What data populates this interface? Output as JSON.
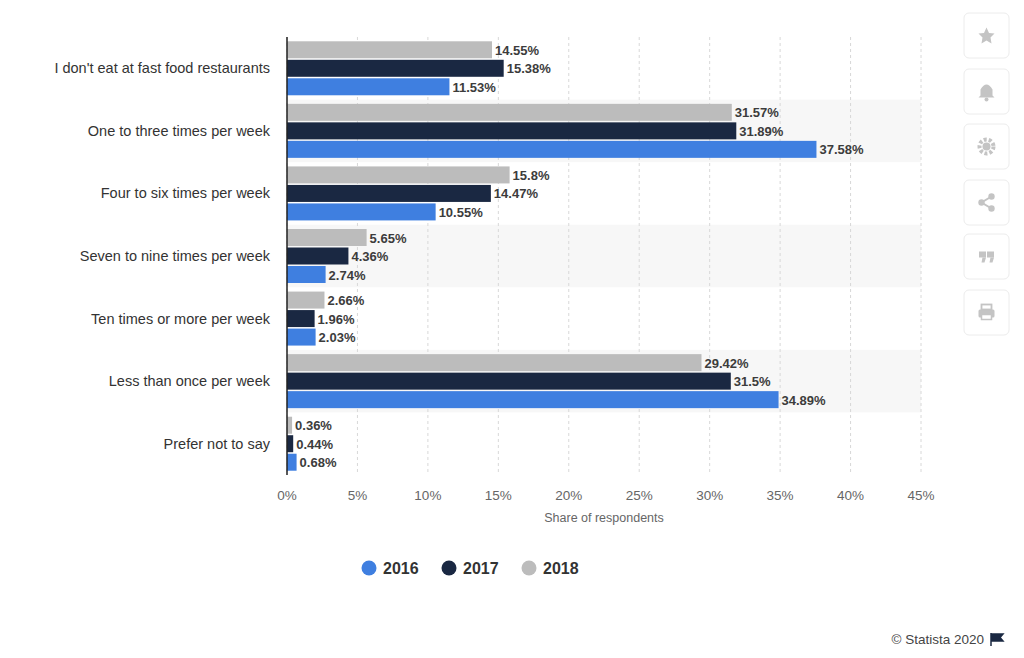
{
  "chart_data": {
    "type": "bar",
    "orientation": "horizontal",
    "categories": [
      "I don't eat at fast food restaurants",
      "One to three times per week",
      "Four to six times per week",
      "Seven to nine times per week",
      "Ten times or more per week",
      "Less than once per week",
      "Prefer not to say"
    ],
    "series": [
      {
        "name": "2016",
        "color": "#3f7fe0",
        "values": [
          11.53,
          37.58,
          10.55,
          2.74,
          2.03,
          34.89,
          0.68
        ],
        "value_labels": [
          "11.53%",
          "37.58%",
          "10.55%",
          "2.74%",
          "2.03%",
          "34.89%",
          "0.68%"
        ]
      },
      {
        "name": "2017",
        "color": "#1a2842",
        "values": [
          15.38,
          31.89,
          14.47,
          4.36,
          1.96,
          31.5,
          0.44
        ],
        "value_labels": [
          "15.38%",
          "31.89%",
          "14.47%",
          "4.36%",
          "1.96%",
          "31.5%",
          "0.44%"
        ]
      },
      {
        "name": "2018",
        "color": "#bcbcbc",
        "values": [
          14.55,
          31.57,
          15.8,
          5.65,
          2.66,
          29.42,
          0.36
        ],
        "value_labels": [
          "14.55%",
          "31.57%",
          "15.8%",
          "5.65%",
          "2.66%",
          "29.42%",
          "0.36%"
        ]
      }
    ],
    "xlabel": "Share of respondents",
    "xlim": [
      0,
      45
    ],
    "xticks": [
      {
        "value": 0,
        "label": "0%"
      },
      {
        "value": 5,
        "label": "5%"
      },
      {
        "value": 10,
        "label": "10%"
      },
      {
        "value": 15,
        "label": "15%"
      },
      {
        "value": 20,
        "label": "20%"
      },
      {
        "value": 25,
        "label": "25%"
      },
      {
        "value": 30,
        "label": "30%"
      },
      {
        "value": 35,
        "label": "35%"
      },
      {
        "value": 40,
        "label": "40%"
      },
      {
        "value": 45,
        "label": "45%"
      }
    ],
    "grid": true,
    "data_labels": true,
    "legend": "bottom",
    "source": "© Statista 2020"
  }
}
